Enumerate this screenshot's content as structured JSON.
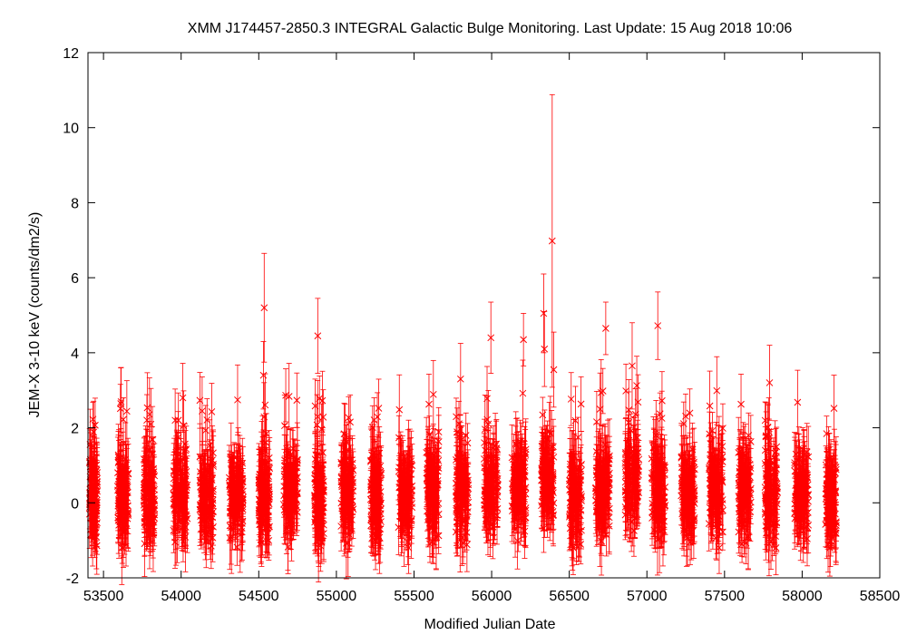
{
  "chart_data": {
    "type": "scatter",
    "title": "XMM J174457-2850.3   INTEGRAL Galactic Bulge Monitoring.  Last Update: 15 Aug 2018 10:06",
    "xlabel": "Modified Julian Date",
    "ylabel": "JEM-X 3-10 keV (counts/dm2/s)",
    "xlim": [
      53400,
      58500
    ],
    "ylim": [
      -2,
      12
    ],
    "xticks": [
      53500,
      54000,
      54500,
      55000,
      55500,
      56000,
      56500,
      57000,
      57500,
      58000,
      58500
    ],
    "yticks": [
      -2,
      0,
      2,
      4,
      6,
      8,
      10,
      12
    ],
    "marker": "x",
    "color": "#ff0000",
    "grid": false,
    "legend": "none",
    "visibility_windows": [
      {
        "start": 53410,
        "end": 53460,
        "mean": 0.1
      },
      {
        "start": 53590,
        "end": 53660,
        "mean": 0.2
      },
      {
        "start": 53760,
        "end": 53830,
        "mean": 0.1
      },
      {
        "start": 53950,
        "end": 54040,
        "mean": 0.3
      },
      {
        "start": 54120,
        "end": 54210,
        "mean": 0.2
      },
      {
        "start": 54310,
        "end": 54400,
        "mean": 0.3
      },
      {
        "start": 54500,
        "end": 54570,
        "mean": 0.3
      },
      {
        "start": 54660,
        "end": 54750,
        "mean": 0.3
      },
      {
        "start": 54860,
        "end": 54920,
        "mean": 0.2
      },
      {
        "start": 55030,
        "end": 55110,
        "mean": 0.3
      },
      {
        "start": 55220,
        "end": 55290,
        "mean": 0.2
      },
      {
        "start": 55400,
        "end": 55490,
        "mean": 0.3
      },
      {
        "start": 55580,
        "end": 55660,
        "mean": 0.3
      },
      {
        "start": 55770,
        "end": 55850,
        "mean": 0.3
      },
      {
        "start": 55950,
        "end": 56040,
        "mean": 0.4
      },
      {
        "start": 56130,
        "end": 56220,
        "mean": 0.5
      },
      {
        "start": 56320,
        "end": 56400,
        "mean": 0.6
      },
      {
        "start": 56500,
        "end": 56580,
        "mean": 0.2
      },
      {
        "start": 56670,
        "end": 56760,
        "mean": 0.4
      },
      {
        "start": 56860,
        "end": 56950,
        "mean": 0.6
      },
      {
        "start": 57030,
        "end": 57120,
        "mean": 0.4
      },
      {
        "start": 57220,
        "end": 57310,
        "mean": 0.3
      },
      {
        "start": 57400,
        "end": 57490,
        "mean": 0.4
      },
      {
        "start": 57590,
        "end": 57670,
        "mean": 0.3
      },
      {
        "start": 57760,
        "end": 57840,
        "mean": 0.2
      },
      {
        "start": 57950,
        "end": 58040,
        "mean": 0.3
      },
      {
        "start": 58150,
        "end": 58220,
        "mean": 0.1
      }
    ],
    "notable_points": [
      {
        "x": 54535,
        "y": 5.2,
        "err": 1.45
      },
      {
        "x": 54530,
        "y": 3.4,
        "err": 0.9
      },
      {
        "x": 54880,
        "y": 4.45,
        "err": 1.0
      },
      {
        "x": 55800,
        "y": 3.3,
        "err": 0.95
      },
      {
        "x": 55995,
        "y": 4.4,
        "err": 0.95
      },
      {
        "x": 56205,
        "y": 4.35,
        "err": 0.7
      },
      {
        "x": 56335,
        "y": 5.05,
        "err": 1.05
      },
      {
        "x": 56390,
        "y": 6.98,
        "err": 3.9
      },
      {
        "x": 56340,
        "y": 4.1,
        "err": 1.0
      },
      {
        "x": 56735,
        "y": 4.65,
        "err": 0.7
      },
      {
        "x": 56905,
        "y": 3.65,
        "err": 1.15
      },
      {
        "x": 57070,
        "y": 4.72,
        "err": 0.9
      },
      {
        "x": 57790,
        "y": 3.2,
        "err": 1.0
      },
      {
        "x": 56400,
        "y": 3.55,
        "err": 1.0
      }
    ]
  }
}
